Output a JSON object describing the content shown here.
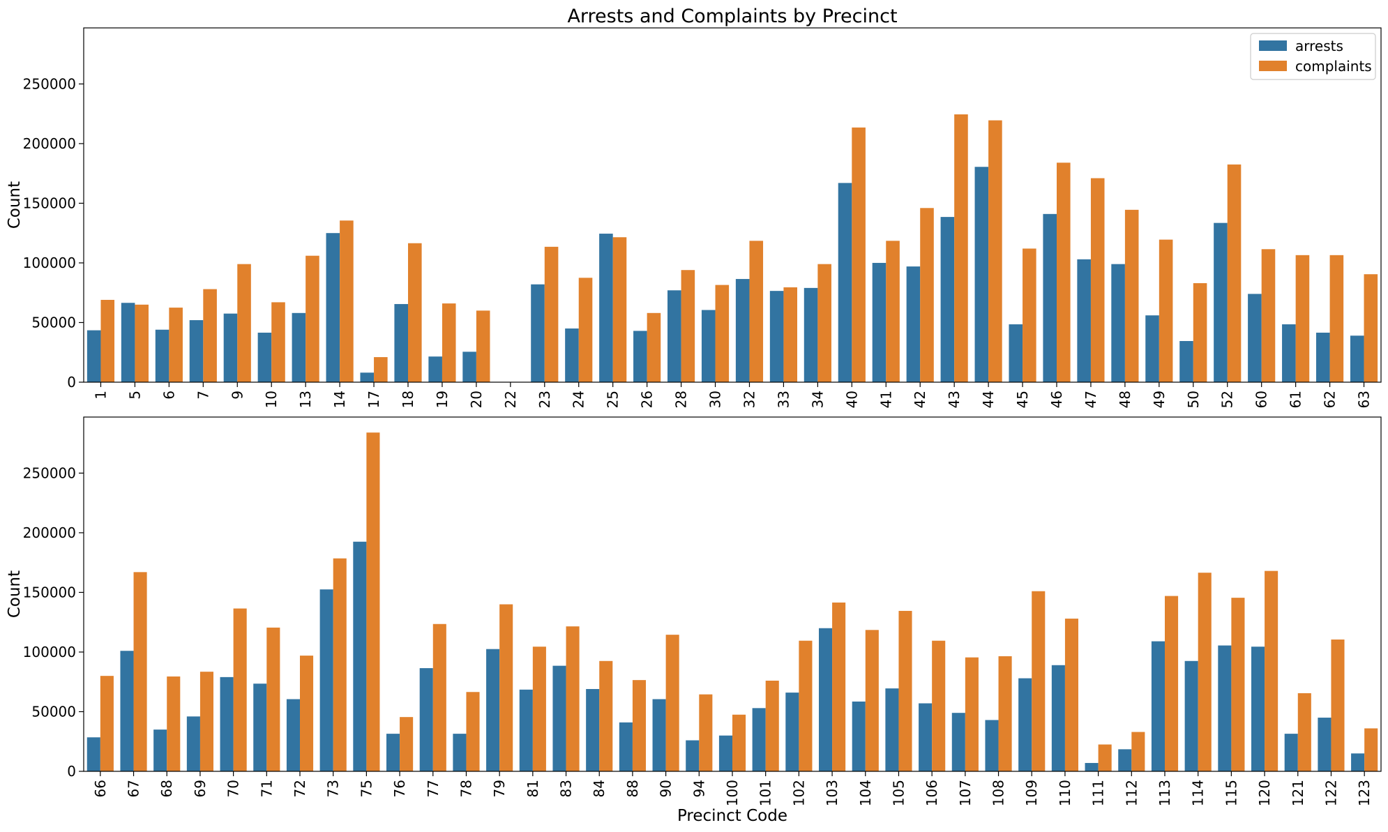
{
  "figure": {
    "title": "Arrests and Complaints by Precinct"
  },
  "colors": {
    "arrests": "#3274a1",
    "complaints": "#e1812c"
  },
  "chart_data": [
    {
      "type": "bar",
      "panel": "top",
      "title": "Arrests and Complaints by Precinct",
      "xlabel": "",
      "ylabel": "Count",
      "ylim": [
        0,
        297000
      ],
      "yticks": [
        0,
        50000,
        100000,
        150000,
        200000,
        250000
      ],
      "legend": {
        "placement": "top-right",
        "entries": [
          "arrests",
          "complaints"
        ]
      },
      "categories": [
        "1",
        "5",
        "6",
        "7",
        "9",
        "10",
        "13",
        "14",
        "17",
        "18",
        "19",
        "20",
        "22",
        "23",
        "24",
        "25",
        "26",
        "28",
        "30",
        "32",
        "33",
        "34",
        "40",
        "41",
        "42",
        "43",
        "44",
        "45",
        "46",
        "47",
        "48",
        "49",
        "50",
        "52",
        "60",
        "61",
        "62",
        "63"
      ],
      "series": [
        {
          "name": "arrests",
          "values": [
            43500,
            66500,
            44000,
            52000,
            57500,
            41500,
            58000,
            125000,
            8000,
            65500,
            21500,
            25500,
            0,
            82000,
            45000,
            124500,
            43000,
            77000,
            60500,
            86500,
            76500,
            79000,
            167000,
            100000,
            97000,
            138500,
            180500,
            48500,
            141000,
            103000,
            99000,
            56000,
            34500,
            133500,
            74000,
            48500,
            41500,
            39000
          ]
        },
        {
          "name": "complaints",
          "values": [
            69000,
            65000,
            62500,
            78000,
            99000,
            67000,
            106000,
            135500,
            21000,
            116500,
            66000,
            60000,
            0,
            113500,
            87500,
            121500,
            58000,
            94000,
            81500,
            118500,
            79500,
            99000,
            213500,
            118500,
            146000,
            224500,
            219500,
            112000,
            184000,
            171000,
            144500,
            119500,
            83000,
            182500,
            111500,
            106500,
            106500,
            90500
          ]
        }
      ]
    },
    {
      "type": "bar",
      "panel": "bottom",
      "title": "",
      "xlabel": "Precinct Code",
      "ylabel": "Count",
      "ylim": [
        0,
        297000
      ],
      "yticks": [
        0,
        50000,
        100000,
        150000,
        200000,
        250000
      ],
      "categories": [
        "66",
        "67",
        "68",
        "69",
        "70",
        "71",
        "72",
        "73",
        "75",
        "76",
        "77",
        "78",
        "79",
        "81",
        "83",
        "84",
        "88",
        "90",
        "94",
        "100",
        "101",
        "102",
        "103",
        "104",
        "105",
        "106",
        "107",
        "108",
        "109",
        "110",
        "111",
        "112",
        "113",
        "114",
        "115",
        "120",
        "121",
        "122",
        "123"
      ],
      "series": [
        {
          "name": "arrests",
          "values": [
            28500,
            101000,
            35000,
            46000,
            79000,
            73500,
            60500,
            152500,
            192500,
            31500,
            86500,
            31500,
            102500,
            68500,
            88500,
            69000,
            41000,
            60500,
            26000,
            30000,
            53000,
            66000,
            120000,
            58500,
            69500,
            57000,
            49000,
            43000,
            78000,
            89000,
            7000,
            18500,
            109000,
            92500,
            105500,
            104500,
            31500,
            45000,
            15000
          ]
        },
        {
          "name": "complaints",
          "values": [
            80000,
            167000,
            79500,
            83500,
            136500,
            120500,
            97000,
            178500,
            284000,
            45500,
            123500,
            66500,
            140000,
            104500,
            121500,
            92500,
            76500,
            114500,
            64500,
            47500,
            76000,
            109500,
            141500,
            118500,
            134500,
            109500,
            95500,
            96500,
            151000,
            128000,
            22500,
            33000,
            147000,
            166500,
            145500,
            168000,
            65500,
            110500,
            36000
          ]
        }
      ]
    }
  ]
}
